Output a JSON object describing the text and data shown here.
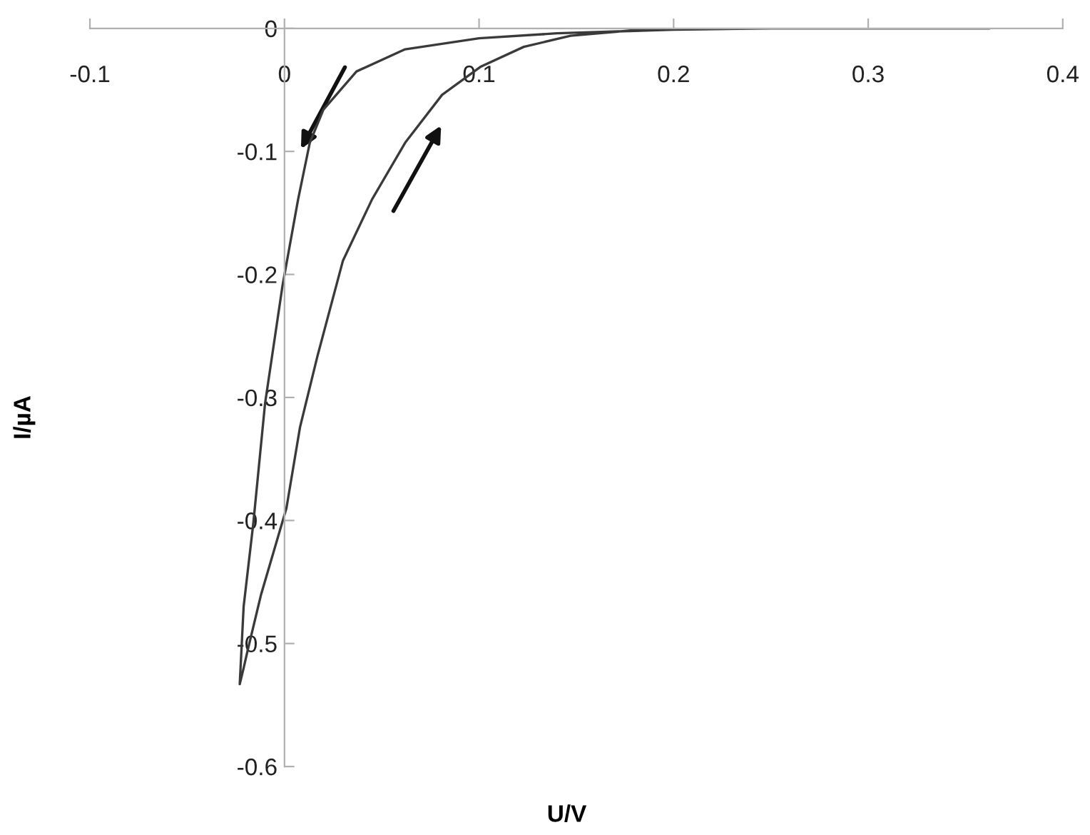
{
  "chart_data": {
    "type": "line",
    "xlabel": "U/V",
    "ylabel": "I/µA",
    "xlim": [
      -0.1,
      0.4
    ],
    "xticks": [
      -0.1,
      0,
      0.1,
      0.2,
      0.3,
      0.4
    ],
    "ylim": [
      -0.6,
      0
    ],
    "yticks": [
      -0.6,
      -0.5,
      -0.4,
      -0.3,
      -0.2,
      -0.1,
      0
    ],
    "grid": false,
    "marker": "none",
    "line_style": "solid",
    "series": [
      {
        "color": "#3a3a3a",
        "x": [
          0.362,
          0.3,
          0.25,
          0.2,
          0.18,
          0.14,
          0.1,
          0.062,
          0.037,
          0.02,
          0.013,
          0.007,
          -0.001,
          -0.01,
          -0.016,
          -0.021,
          -0.023,
          -0.021,
          -0.019,
          -0.012,
          0.001,
          0.008,
          0.017,
          0.03,
          0.045,
          0.062,
          0.081,
          0.101,
          0.123,
          0.147,
          0.183,
          0.22
        ],
        "values": [
          0,
          0,
          0,
          -0.001,
          -0.002,
          -0.004,
          -0.008,
          -0.017,
          -0.035,
          -0.066,
          -0.093,
          -0.139,
          -0.209,
          -0.305,
          -0.402,
          -0.47,
          -0.533,
          -0.52,
          -0.506,
          -0.46,
          -0.39,
          -0.324,
          -0.266,
          -0.189,
          -0.139,
          -0.093,
          -0.054,
          -0.031,
          -0.015,
          -0.006,
          -0.001,
          0
        ]
      }
    ]
  }
}
